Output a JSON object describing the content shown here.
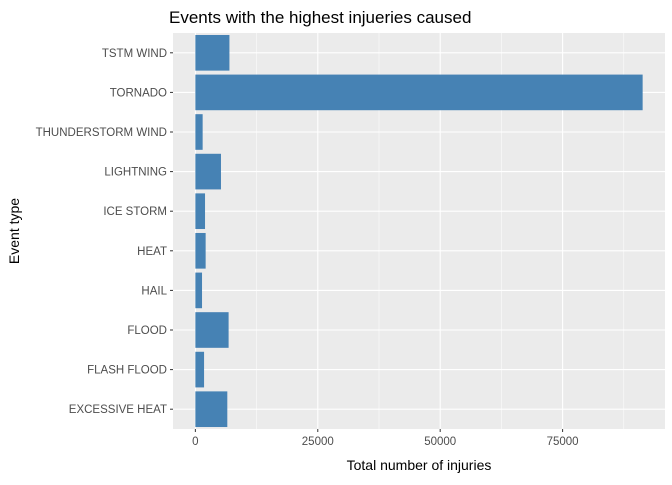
{
  "chart_data": {
    "type": "bar",
    "orientation": "horizontal",
    "title": "Events with the highest injueries caused",
    "xlabel": "Total number of injuries",
    "ylabel": "Event type",
    "categories": [
      "TSTM WIND",
      "TORNADO",
      "THUNDERSTORM WIND",
      "LIGHTNING",
      "ICE STORM",
      "HEAT",
      "HAIL",
      "FLOOD",
      "FLASH FLOOD",
      "EXCESSIVE HEAT"
    ],
    "values": [
      6957,
      91346,
      1488,
      5230,
      1975,
      2100,
      1361,
      6789,
      1777,
      6525
    ],
    "xlim": [
      -4567,
      95913
    ],
    "xticks": [
      0,
      25000,
      50000,
      75000
    ],
    "xtick_labels": [
      "0",
      "25000",
      "50000",
      "75000"
    ],
    "bar_color": "#4682B4",
    "panel_color": "#EBEBEB",
    "grid": true
  }
}
